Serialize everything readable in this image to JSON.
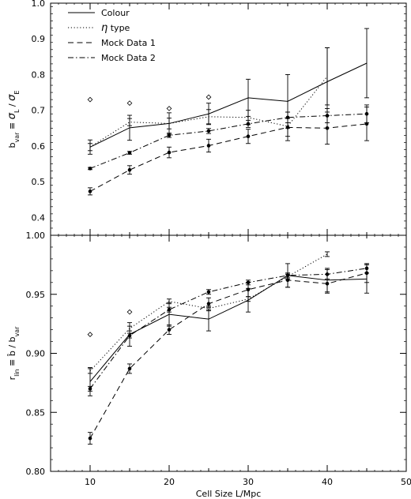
{
  "chart_data": [
    {
      "type": "line",
      "ylabel": "b_var ≡ σ_L / σ_E",
      "xlim": [
        5,
        50
      ],
      "ylim": [
        0.35,
        1.0
      ],
      "yticks": [
        "0.4",
        "0.5",
        "0.6",
        "0.7",
        "0.8",
        "0.9",
        "1.0"
      ],
      "legend": {
        "placement": "top-left",
        "entries": [
          "Colour",
          "η type",
          "Mock Data 1",
          "Mock Data 2"
        ]
      },
      "series": [
        {
          "name": "Colour",
          "style": "solid",
          "x": [
            10,
            15,
            20,
            25,
            30,
            35,
            40,
            45
          ],
          "y": [
            0.597,
            0.651,
            0.663,
            0.69,
            0.735,
            0.725,
            0.78,
            0.832
          ],
          "err": [
            0.02,
            0.035,
            0.03,
            0.03,
            0.052,
            0.075,
            0.095,
            0.097
          ]
        },
        {
          "name": "η type",
          "style": "dotted",
          "x": [
            10,
            15,
            20,
            25,
            30,
            35,
            40
          ],
          "y": [
            0.597,
            0.667,
            0.663,
            0.682,
            0.68,
            0.655,
            0.795
          ],
          "err": [
            0.01,
            0.01,
            0.015,
            0.02,
            0.02,
            0.04,
            0.08
          ],
          "open_points": [
            [
              10,
              0.73
            ],
            [
              15,
              0.72
            ],
            [
              20,
              0.705
            ],
            [
              25,
              0.737
            ]
          ]
        },
        {
          "name": "Mock Data 1",
          "style": "dashed",
          "x": [
            10,
            15,
            20,
            25,
            30,
            35,
            40,
            45
          ],
          "y": [
            0.473,
            0.533,
            0.582,
            0.601,
            0.627,
            0.652,
            0.65,
            0.662
          ],
          "err": [
            0.01,
            0.012,
            0.015,
            0.018,
            0.02,
            0.025,
            0.045,
            0.047
          ]
        },
        {
          "name": "Mock Data 2",
          "style": "dashdot",
          "x": [
            10,
            15,
            20,
            25,
            30,
            35,
            40,
            45
          ],
          "y": [
            0.537,
            0.581,
            0.63,
            0.642,
            0.662,
            0.68,
            0.685,
            0.69
          ],
          "err": [
            0.003,
            0.004,
            0.006,
            0.007,
            0.01,
            0.015,
            0.02,
            0.025
          ]
        }
      ]
    },
    {
      "type": "line",
      "xlabel": "Cell Size L/Mpc",
      "ylabel": "r_lin ≡ b̂ / b_var",
      "xlim": [
        5,
        50
      ],
      "ylim": [
        0.8,
        1.0
      ],
      "xticks": [
        "10",
        "20",
        "30",
        "40",
        "50"
      ],
      "yticks": [
        "0.80",
        "0.85",
        "0.90",
        "0.95",
        "1.00"
      ],
      "series": [
        {
          "name": "Colour",
          "style": "solid",
          "x": [
            10,
            15,
            20,
            25,
            30,
            35,
            40,
            45
          ],
          "y": [
            0.876,
            0.916,
            0.933,
            0.929,
            0.945,
            0.966,
            0.962,
            0.963
          ],
          "err": [
            0.012,
            0.01,
            0.01,
            0.01,
            0.01,
            0.01,
            0.01,
            0.012
          ]
        },
        {
          "name": "η type",
          "style": "dotted",
          "x": [
            10,
            15,
            20,
            25,
            30,
            35,
            40
          ],
          "y": [
            0.885,
            0.921,
            0.944,
            0.938,
            0.946,
            0.965,
            0.984
          ],
          "err": [
            0.002,
            0.002,
            0.002,
            0.002,
            0.002,
            0.002,
            0.002
          ],
          "open_points": [
            [
              10,
              0.916
            ],
            [
              15,
              0.935
            ]
          ]
        },
        {
          "name": "Mock Data 1",
          "style": "dashed",
          "x": [
            10,
            15,
            20,
            25,
            30,
            35,
            40,
            45
          ],
          "y": [
            0.828,
            0.887,
            0.92,
            0.942,
            0.954,
            0.962,
            0.959,
            0.968
          ],
          "err": [
            0.005,
            0.004,
            0.004,
            0.005,
            0.006,
            0.006,
            0.008,
            0.008
          ]
        },
        {
          "name": "Mock Data 2",
          "style": "dashdot",
          "x": [
            10,
            15,
            20,
            25,
            30,
            35,
            40,
            45
          ],
          "y": [
            0.87,
            0.915,
            0.937,
            0.952,
            0.96,
            0.966,
            0.967,
            0.972
          ],
          "err": [
            0.002,
            0.002,
            0.002,
            0.002,
            0.002,
            0.002,
            0.004,
            0.004
          ]
        }
      ]
    }
  ]
}
